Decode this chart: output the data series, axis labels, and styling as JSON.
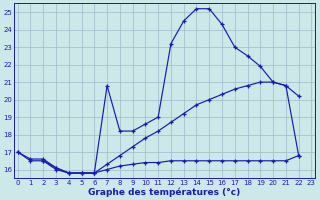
{
  "xlabel": "Graphe des températures (°c)",
  "xlim": [
    -0.3,
    23.3
  ],
  "ylim": [
    15.5,
    25.5
  ],
  "yticks": [
    16,
    17,
    18,
    19,
    20,
    21,
    22,
    23,
    24,
    25
  ],
  "xticks": [
    0,
    1,
    2,
    3,
    4,
    5,
    6,
    7,
    8,
    9,
    10,
    11,
    12,
    13,
    14,
    15,
    16,
    17,
    18,
    19,
    20,
    21,
    22,
    23
  ],
  "bg_color": "#cce8e8",
  "line_color": "#1a1ab0",
  "grid_color": "#a0b8c8",
  "line1_x": [
    0,
    1,
    2,
    3,
    4,
    5,
    6,
    7,
    8,
    9,
    10,
    11,
    12,
    13,
    14,
    15,
    16,
    17,
    18,
    19,
    20,
    21,
    22
  ],
  "line1_y": [
    17.0,
    16.6,
    16.6,
    16.1,
    15.8,
    15.8,
    15.8,
    20.8,
    18.2,
    18.2,
    18.6,
    19.0,
    23.2,
    24.5,
    25.2,
    25.2,
    24.3,
    23.0,
    22.5,
    21.9,
    21.0,
    20.8,
    20.2
  ],
  "line2_x": [
    0,
    1,
    2,
    3,
    4,
    5,
    6,
    7,
    8,
    9,
    10,
    11,
    12,
    13,
    14,
    15,
    16,
    17,
    18,
    19,
    20,
    21,
    22
  ],
  "line2_y": [
    17.0,
    16.5,
    16.5,
    16.0,
    15.8,
    15.8,
    15.8,
    16.3,
    16.8,
    17.3,
    17.8,
    18.2,
    18.7,
    19.2,
    19.7,
    20.0,
    20.3,
    20.6,
    20.8,
    21.0,
    21.0,
    20.8,
    16.8
  ],
  "line3_x": [
    2,
    3,
    4,
    5,
    6,
    7,
    8,
    9,
    10,
    11,
    12,
    13,
    14,
    15,
    16,
    17,
    18,
    19,
    20,
    21,
    22
  ],
  "line3_y": [
    16.5,
    16.1,
    15.8,
    15.8,
    15.8,
    16.0,
    16.2,
    16.3,
    16.4,
    16.4,
    16.5,
    16.5,
    16.5,
    16.5,
    16.5,
    16.5,
    16.5,
    16.5,
    16.5,
    16.5,
    16.8
  ]
}
